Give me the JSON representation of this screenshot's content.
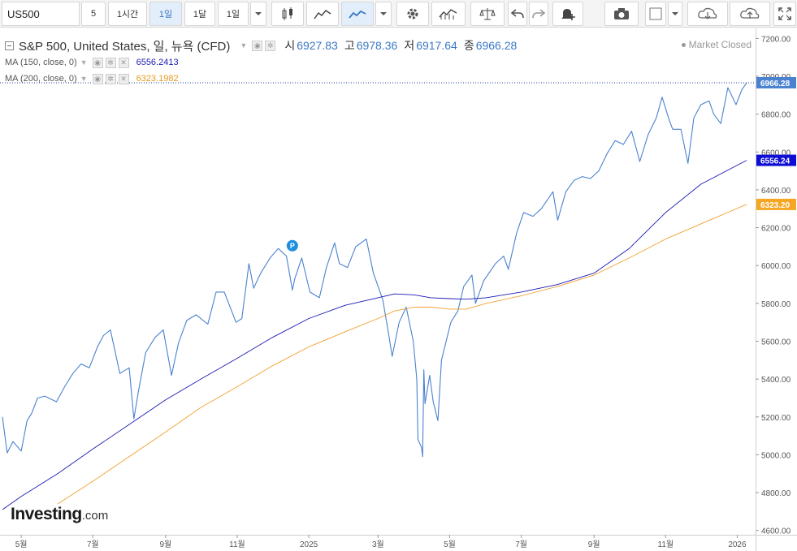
{
  "toolbar": {
    "symbol": "US500",
    "intervals": [
      "5",
      "1시간",
      "1일",
      "1달"
    ],
    "active_interval": "1일",
    "interval_dropdown": "1일",
    "icons": [
      "candlestick-icon",
      "area-chart-icon",
      "line-chart-icon",
      "chevron-down-icon",
      "gear-icon",
      "indicators-icon",
      "balance-icon",
      "undo-icon",
      "redo-icon",
      "alert-bell-icon",
      "camera-icon",
      "color-square-icon",
      "chevron-down-icon",
      "cloud-download-icon",
      "cloud-upload-icon",
      "fullscreen-icon"
    ]
  },
  "legend": {
    "title": "S&P 500, United States, 일, 뉴욕 (CFD)",
    "open_label": "시",
    "open": "6927.83",
    "high_label": "고",
    "high": "6978.36",
    "low_label": "저",
    "low": "6917.64",
    "close_label": "종",
    "close": "6966.28",
    "ma150_name": "MA (150, close, 0)",
    "ma150_value": "6556.2413",
    "ma200_name": "MA (200, close, 0)",
    "ma200_value": "6323.1982"
  },
  "status": "Market Closed",
  "logo": {
    "main": "Investing",
    "suffix": ".com"
  },
  "colors": {
    "price": "#4a82d0",
    "ma150": "#1a1ab4",
    "ma200": "#f0a030",
    "close_tag": "#4a82d0",
    "ma150_tag": "#0d0dd6",
    "ma200_tag": "#f5a623"
  },
  "chart_data": {
    "type": "line",
    "ylim": [
      4600,
      7200
    ],
    "yticks": [
      4600,
      4800,
      5000,
      5200,
      5400,
      5600,
      5800,
      6000,
      6200,
      6400,
      6600,
      6800,
      7000,
      7200
    ],
    "ytick_labels": [
      "4600.00",
      "4800.00",
      "5000.00",
      "5200.00",
      "5400.00",
      "5600.00",
      "5800.00",
      "6000.00",
      "6200.00",
      "6400.00",
      "6600.00",
      "6800.00",
      "7000.00",
      "7200.00"
    ],
    "xtick_labels": [
      "5월",
      "7월",
      "9월",
      "11월",
      "2025",
      "3월",
      "5월",
      "7월",
      "9월",
      "11월",
      "2026"
    ],
    "xtick_dates": [
      "2024-05-01",
      "2024-07-01",
      "2024-09-01",
      "2024-11-01",
      "2025-01-01",
      "2025-03-01",
      "2025-05-01",
      "2025-07-01",
      "2025-09-01",
      "2025-11-01",
      "2026-01-01"
    ],
    "x_range": [
      "2024-04-15",
      "2026-01-09"
    ],
    "markers": [
      {
        "label": "P",
        "date": "2024-12-18",
        "value": 6105
      }
    ],
    "last_values": {
      "close": "6966.28",
      "ma150": "6556.24",
      "ma200": "6323.20"
    },
    "series": [
      {
        "name": "S&P 500",
        "dates": [
          "2024-04-15",
          "2024-04-19",
          "2024-04-24",
          "2024-05-01",
          "2024-05-06",
          "2024-05-10",
          "2024-05-15",
          "2024-05-21",
          "2024-05-31",
          "2024-06-07",
          "2024-06-14",
          "2024-06-21",
          "2024-06-28",
          "2024-07-05",
          "2024-07-10",
          "2024-07-16",
          "2024-07-24",
          "2024-08-01",
          "2024-08-05",
          "2024-08-09",
          "2024-08-15",
          "2024-08-23",
          "2024-08-30",
          "2024-09-06",
          "2024-09-12",
          "2024-09-19",
          "2024-09-27",
          "2024-10-07",
          "2024-10-14",
          "2024-10-21",
          "2024-10-31",
          "2024-11-05",
          "2024-11-11",
          "2024-11-15",
          "2024-11-21",
          "2024-11-29",
          "2024-12-06",
          "2024-12-13",
          "2024-12-18",
          "2024-12-20",
          "2024-12-26",
          "2025-01-02",
          "2025-01-10",
          "2025-01-16",
          "2025-01-23",
          "2025-01-27",
          "2025-02-03",
          "2025-02-10",
          "2025-02-19",
          "2025-02-25",
          "2025-03-05",
          "2025-03-10",
          "2025-03-13",
          "2025-03-19",
          "2025-03-25",
          "2025-03-31",
          "2025-04-03",
          "2025-04-04",
          "2025-04-07",
          "2025-04-08",
          "2025-04-09",
          "2025-04-10",
          "2025-04-14",
          "2025-04-17",
          "2025-04-21",
          "2025-04-24",
          "2025-05-02",
          "2025-05-08",
          "2025-05-13",
          "2025-05-20",
          "2025-05-23",
          "2025-05-30",
          "2025-06-09",
          "2025-06-16",
          "2025-06-20",
          "2025-06-27",
          "2025-07-03",
          "2025-07-11",
          "2025-07-18",
          "2025-07-28",
          "2025-08-01",
          "2025-08-08",
          "2025-08-15",
          "2025-08-22",
          "2025-08-29",
          "2025-09-05",
          "2025-09-12",
          "2025-09-19",
          "2025-09-26",
          "2025-10-03",
          "2025-10-10",
          "2025-10-17",
          "2025-10-24",
          "2025-10-29",
          "2025-11-04",
          "2025-11-07",
          "2025-11-14",
          "2025-11-20",
          "2025-11-25",
          "2025-12-01",
          "2025-12-08",
          "2025-12-12",
          "2025-12-18",
          "2025-12-24",
          "2025-12-31",
          "2026-01-05",
          "2026-01-09"
        ],
        "values": [
          5200,
          5010,
          5070,
          5020,
          5180,
          5220,
          5300,
          5310,
          5280,
          5360,
          5430,
          5480,
          5460,
          5570,
          5630,
          5660,
          5430,
          5460,
          5190,
          5340,
          5540,
          5620,
          5660,
          5420,
          5590,
          5710,
          5740,
          5690,
          5860,
          5860,
          5700,
          5720,
          6010,
          5880,
          5960,
          6040,
          6090,
          6050,
          5870,
          5930,
          6040,
          5860,
          5830,
          5990,
          6120,
          6010,
          5990,
          6100,
          6140,
          5960,
          5820,
          5640,
          5520,
          5700,
          5780,
          5600,
          5400,
          5080,
          5040,
          4990,
          5450,
          5270,
          5420,
          5280,
          5180,
          5500,
          5700,
          5760,
          5890,
          5950,
          5800,
          5920,
          6010,
          6050,
          5980,
          6170,
          6280,
          6260,
          6300,
          6390,
          6240,
          6390,
          6450,
          6470,
          6460,
          6500,
          6590,
          6660,
          6640,
          6710,
          6550,
          6690,
          6780,
          6890,
          6770,
          6720,
          6720,
          6540,
          6780,
          6850,
          6870,
          6800,
          6750,
          6940,
          6850,
          6930,
          6966
        ]
      },
      {
        "name": "MA (150, close, 0)",
        "dates": [
          "2024-04-15",
          "2024-05-01",
          "2024-06-01",
          "2024-07-01",
          "2024-08-01",
          "2024-09-01",
          "2024-10-01",
          "2024-11-01",
          "2024-12-01",
          "2025-01-01",
          "2025-02-01",
          "2025-03-01",
          "2025-03-15",
          "2025-04-01",
          "2025-04-15",
          "2025-05-01",
          "2025-05-15",
          "2025-06-01",
          "2025-07-01",
          "2025-08-01",
          "2025-09-01",
          "2025-10-01",
          "2025-11-01",
          "2025-12-01",
          "2026-01-09"
        ],
        "values": [
          4710,
          4780,
          4900,
          5030,
          5160,
          5290,
          5400,
          5510,
          5620,
          5720,
          5790,
          5830,
          5850,
          5845,
          5830,
          5825,
          5822,
          5830,
          5860,
          5900,
          5960,
          6090,
          6280,
          6430,
          6556
        ]
      },
      {
        "name": "MA (200, close, 0)",
        "dates": [
          "2024-06-01",
          "2024-07-01",
          "2024-08-01",
          "2024-09-01",
          "2024-10-01",
          "2024-11-01",
          "2024-12-01",
          "2025-01-01",
          "2025-02-01",
          "2025-03-01",
          "2025-03-15",
          "2025-04-01",
          "2025-04-15",
          "2025-05-01",
          "2025-05-15",
          "2025-06-01",
          "2025-07-01",
          "2025-08-01",
          "2025-09-01",
          "2025-10-01",
          "2025-11-01",
          "2025-12-01",
          "2026-01-09"
        ],
        "values": [
          4740,
          4860,
          4990,
          5120,
          5250,
          5360,
          5470,
          5570,
          5650,
          5720,
          5760,
          5780,
          5780,
          5770,
          5770,
          5800,
          5840,
          5890,
          5950,
          6040,
          6140,
          6220,
          6323
        ]
      }
    ]
  }
}
